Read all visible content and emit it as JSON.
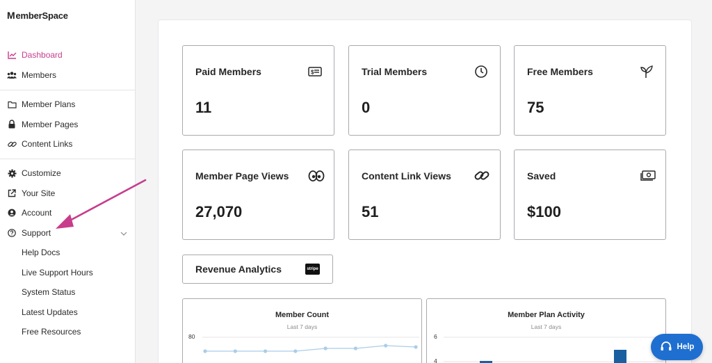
{
  "app": {
    "logo_text": "emberSpace",
    "logo_initial": "M"
  },
  "sidebar": {
    "primary": [
      {
        "label": "Dashboard",
        "icon": "chart-line-icon",
        "active": true
      },
      {
        "label": "Members",
        "icon": "users-icon"
      }
    ],
    "content": [
      {
        "label": "Member Plans",
        "icon": "folder-icon"
      },
      {
        "label": "Member Pages",
        "icon": "lock-icon"
      },
      {
        "label": "Content Links",
        "icon": "link-icon"
      }
    ],
    "settings": [
      {
        "label": "Customize",
        "icon": "gear-icon"
      },
      {
        "label": "Your Site",
        "icon": "external-link-icon"
      },
      {
        "label": "Account",
        "icon": "user-circle-icon"
      },
      {
        "label": "Support",
        "icon": "question-circle-icon",
        "expanded": true
      }
    ],
    "support_items": [
      {
        "label": "Help Docs"
      },
      {
        "label": "Live Support Hours"
      },
      {
        "label": "System Status"
      },
      {
        "label": "Latest Updates"
      },
      {
        "label": "Free Resources"
      }
    ]
  },
  "stats": [
    {
      "title": "Paid Members",
      "value": "11",
      "icon": "id-card-dollar-icon"
    },
    {
      "title": "Trial Members",
      "value": "0",
      "icon": "clock-icon"
    },
    {
      "title": "Free Members",
      "value": "75",
      "icon": "sprout-icon"
    },
    {
      "title": "Member Page Views",
      "value": "27,070",
      "icon": "eyes-icon"
    },
    {
      "title": "Content Link Views",
      "value": "51",
      "icon": "link-icon"
    },
    {
      "title": "Saved",
      "value": "$100",
      "icon": "money-bill-icon"
    }
  ],
  "revenue": {
    "label": "Revenue Analytics",
    "badge": "stripe"
  },
  "charts": {
    "member_count": {
      "title": "Member Count",
      "subtitle": "Last 7 days",
      "tick_top": "80"
    },
    "plan_activity": {
      "title": "Member Plan Activity",
      "subtitle": "Last 7 days",
      "tick_top": "6",
      "tick_mid": "4"
    }
  },
  "chart_data": [
    {
      "type": "line",
      "title": "Member Count",
      "subtitle": "Last 7 days",
      "x": [
        1,
        2,
        3,
        4,
        5,
        6,
        7,
        8
      ],
      "series": [
        {
          "values": [
            75,
            75,
            75,
            75,
            76,
            76,
            77,
            76.5
          ]
        }
      ],
      "yticks": [
        80
      ],
      "color": "#a9cde8"
    },
    {
      "type": "bar",
      "title": "Member Plan Activity",
      "subtitle": "Last 7 days",
      "yticks": [
        6,
        4
      ],
      "color": "#1a5fa0"
    }
  ],
  "help": {
    "label": "Help",
    "color": "#1f6fd1"
  },
  "colors": {
    "accent": "#c73d8c",
    "arrow": "#c73d8c"
  }
}
